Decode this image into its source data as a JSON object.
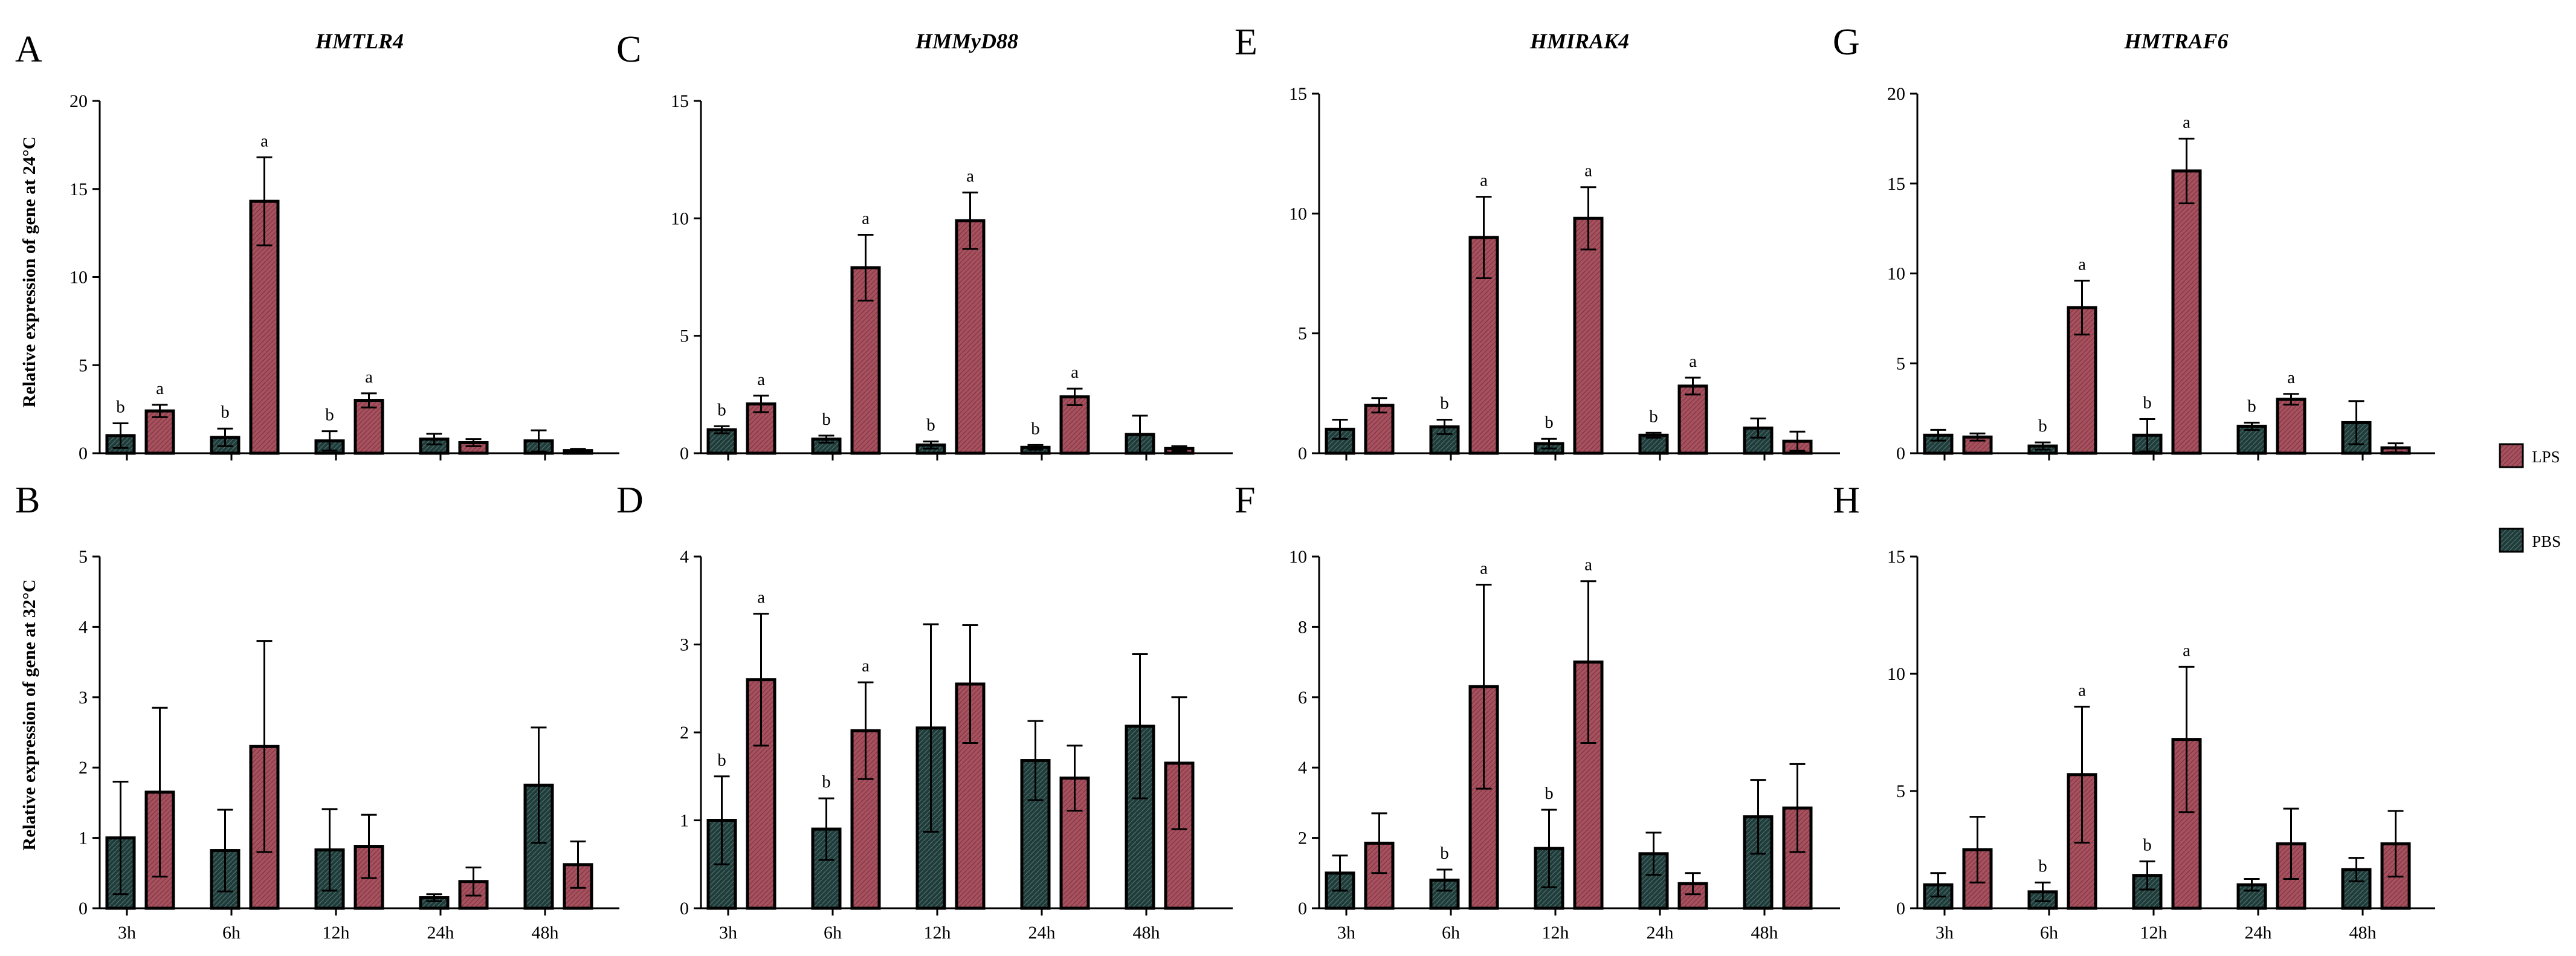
{
  "legend": {
    "entries": [
      {
        "label": "LPS",
        "series": "LPS"
      },
      {
        "label": "PBS",
        "series": "PBS"
      }
    ]
  },
  "colors": {
    "LPS": "#a8505e",
    "PBS": "#1f3b3a"
  },
  "row_labels": {
    "top": "Relative expression of  gene at 24°C",
    "bottom": "Relative expression of gene at 32°C"
  },
  "chart_data": [
    {
      "panel": "A",
      "title": "HMTLR4",
      "type": "bar",
      "ylim": [
        0,
        20
      ],
      "yticks": [
        0,
        5,
        10,
        15,
        20
      ],
      "categories": [
        "3h",
        "6h",
        "12h",
        "24h",
        "48h"
      ],
      "series": [
        {
          "name": "PBS",
          "values": [
            1.0,
            0.9,
            0.7,
            0.8,
            0.7
          ],
          "errors": [
            0.7,
            0.5,
            0.55,
            0.3,
            0.6
          ]
        },
        {
          "name": "LPS",
          "values": [
            2.4,
            14.3,
            3.0,
            0.6,
            0.15
          ],
          "errors": [
            0.35,
            2.5,
            0.4,
            0.2,
            0.1
          ]
        }
      ],
      "annotations": {
        "PBS": [
          "b",
          "b",
          "b",
          "",
          ""
        ],
        "LPS": [
          "a",
          "a",
          "a",
          "",
          ""
        ]
      }
    },
    {
      "panel": "C",
      "title": "HMMyD88",
      "type": "bar",
      "ylim": [
        0,
        15
      ],
      "yticks": [
        0,
        5,
        10,
        15
      ],
      "categories": [
        "3h",
        "6h",
        "12h",
        "24h",
        "48h"
      ],
      "series": [
        {
          "name": "PBS",
          "values": [
            1.0,
            0.6,
            0.35,
            0.25,
            0.8
          ],
          "errors": [
            0.15,
            0.15,
            0.15,
            0.1,
            0.8
          ]
        },
        {
          "name": "LPS",
          "values": [
            2.1,
            7.9,
            9.9,
            2.4,
            0.2
          ],
          "errors": [
            0.35,
            1.4,
            1.2,
            0.35,
            0.1
          ]
        }
      ],
      "annotations": {
        "PBS": [
          "b",
          "b",
          "b",
          "b",
          ""
        ],
        "LPS": [
          "a",
          "a",
          "a",
          "a",
          ""
        ]
      }
    },
    {
      "panel": "E",
      "title": "HMIRAK4",
      "type": "bar",
      "ylim": [
        0,
        15
      ],
      "yticks": [
        0,
        5,
        10,
        15
      ],
      "categories": [
        "3h",
        "6h",
        "12h",
        "24h",
        "48h"
      ],
      "series": [
        {
          "name": "PBS",
          "values": [
            1.0,
            1.1,
            0.4,
            0.75,
            1.05
          ],
          "errors": [
            0.4,
            0.3,
            0.2,
            0.1,
            0.4
          ]
        },
        {
          "name": "LPS",
          "values": [
            2.0,
            9.0,
            9.8,
            2.8,
            0.5
          ],
          "errors": [
            0.3,
            1.7,
            1.3,
            0.35,
            0.4
          ]
        }
      ],
      "annotations": {
        "PBS": [
          "",
          "b",
          "b",
          "b",
          ""
        ],
        "LPS": [
          "",
          "a",
          "a",
          "a",
          ""
        ]
      }
    },
    {
      "panel": "G",
      "title": "HMTRAF6",
      "type": "bar",
      "ylim": [
        0,
        20
      ],
      "yticks": [
        0,
        5,
        10,
        15,
        20
      ],
      "categories": [
        "3h",
        "6h",
        "12h",
        "24h",
        "48h"
      ],
      "series": [
        {
          "name": "PBS",
          "values": [
            1.0,
            0.4,
            1.0,
            1.5,
            1.7
          ],
          "errors": [
            0.3,
            0.2,
            0.9,
            0.2,
            1.2
          ]
        },
        {
          "name": "LPS",
          "values": [
            0.9,
            8.1,
            15.7,
            3.0,
            0.3
          ],
          "errors": [
            0.2,
            1.5,
            1.8,
            0.3,
            0.25
          ]
        }
      ],
      "annotations": {
        "PBS": [
          "",
          "b",
          "b",
          "b",
          ""
        ],
        "LPS": [
          "",
          "a",
          "a",
          "a",
          ""
        ]
      }
    },
    {
      "panel": "B",
      "title": "",
      "type": "bar",
      "ylim": [
        0,
        5
      ],
      "yticks": [
        0,
        1,
        2,
        3,
        4,
        5
      ],
      "categories": [
        "3h",
        "6h",
        "12h",
        "24h",
        "48h"
      ],
      "series": [
        {
          "name": "PBS",
          "values": [
            1.0,
            0.82,
            0.83,
            0.15,
            1.75
          ],
          "errors": [
            0.8,
            0.58,
            0.58,
            0.05,
            0.82
          ]
        },
        {
          "name": "LPS",
          "values": [
            1.65,
            2.3,
            0.88,
            0.38,
            0.62
          ],
          "errors": [
            1.2,
            1.5,
            0.45,
            0.2,
            0.33
          ]
        }
      ],
      "annotations": {
        "PBS": [
          "",
          "",
          "",
          "",
          ""
        ],
        "LPS": [
          "",
          "",
          "",
          "",
          ""
        ]
      }
    },
    {
      "panel": "D",
      "title": "",
      "type": "bar",
      "ylim": [
        0,
        4
      ],
      "yticks": [
        0,
        1,
        2,
        3,
        4
      ],
      "categories": [
        "3h",
        "6h",
        "12h",
        "24h",
        "48h"
      ],
      "series": [
        {
          "name": "PBS",
          "values": [
            1.0,
            0.9,
            2.05,
            1.68,
            2.07
          ],
          "errors": [
            0.5,
            0.35,
            1.18,
            0.45,
            0.82
          ]
        },
        {
          "name": "LPS",
          "values": [
            2.6,
            2.02,
            2.55,
            1.48,
            1.65
          ],
          "errors": [
            0.75,
            0.55,
            0.67,
            0.37,
            0.75
          ]
        }
      ],
      "annotations": {
        "PBS": [
          "b",
          "b",
          "",
          "",
          ""
        ],
        "LPS": [
          "a",
          "a",
          "",
          "",
          ""
        ]
      }
    },
    {
      "panel": "F",
      "title": "",
      "type": "bar",
      "ylim": [
        0,
        10
      ],
      "yticks": [
        0,
        2,
        4,
        6,
        8,
        10
      ],
      "categories": [
        "3h",
        "6h",
        "12h",
        "24h",
        "48h"
      ],
      "series": [
        {
          "name": "PBS",
          "values": [
            1.0,
            0.8,
            1.7,
            1.55,
            2.6
          ],
          "errors": [
            0.5,
            0.3,
            1.1,
            0.6,
            1.05
          ]
        },
        {
          "name": "LPS",
          "values": [
            1.85,
            6.3,
            7.0,
            0.7,
            2.85
          ],
          "errors": [
            0.85,
            2.9,
            2.3,
            0.3,
            1.25
          ]
        }
      ],
      "annotations": {
        "PBS": [
          "",
          "b",
          "b",
          "",
          ""
        ],
        "LPS": [
          "",
          "a",
          "a",
          "",
          ""
        ]
      }
    },
    {
      "panel": "H",
      "title": "",
      "type": "bar",
      "ylim": [
        0,
        15
      ],
      "yticks": [
        0,
        5,
        10,
        15
      ],
      "categories": [
        "3h",
        "6h",
        "12h",
        "24h",
        "48h"
      ],
      "series": [
        {
          "name": "PBS",
          "values": [
            1.0,
            0.7,
            1.4,
            1.0,
            1.65
          ],
          "errors": [
            0.5,
            0.4,
            0.6,
            0.25,
            0.5
          ]
        },
        {
          "name": "LPS",
          "values": [
            2.5,
            5.7,
            7.2,
            2.75,
            2.75
          ],
          "errors": [
            1.4,
            2.9,
            3.1,
            1.5,
            1.4
          ]
        }
      ],
      "annotations": {
        "PBS": [
          "",
          "b",
          "b",
          "",
          ""
        ],
        "LPS": [
          "",
          "a",
          "a",
          "",
          ""
        ]
      }
    }
  ]
}
